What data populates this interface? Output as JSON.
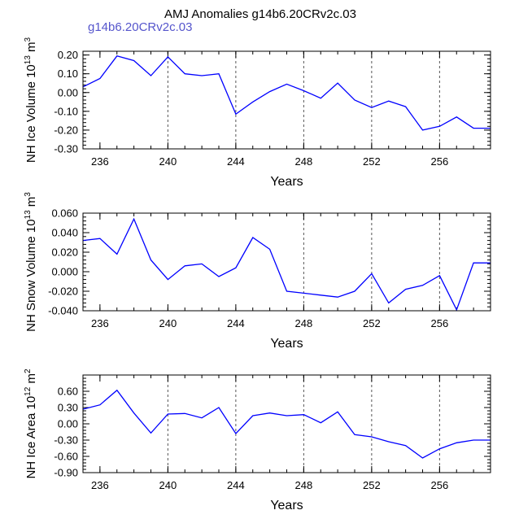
{
  "figure": {
    "title": "AMJ Anomalies g14b6.20CRv2c.03",
    "subtitle": "g14b6.20CRv2c.03",
    "colors": {
      "series": "#0000ff",
      "axis": "#000000",
      "subtitle": "#5555cc",
      "grid": "#555555"
    }
  },
  "chart_data": [
    {
      "type": "line",
      "title": "",
      "xlabel": "Years",
      "ylabel_main": "NH Ice Volume 10",
      "ylabel_exp": "13",
      "ylabel_unit": " m",
      "ylabel_unit_exp": "3",
      "xlim": [
        235,
        259
      ],
      "ylim": [
        -0.3,
        0.22
      ],
      "xticks": [
        236,
        240,
        244,
        248,
        252,
        256
      ],
      "xtick_labels": [
        "236",
        "240",
        "244",
        "248",
        "252",
        "256"
      ],
      "yticks": [
        0.2,
        0.1,
        0.0,
        -0.1,
        -0.2,
        -0.3
      ],
      "ytick_labels": [
        "0.20",
        "0.10",
        "0.00",
        "-0.10",
        "-0.20",
        "-0.30"
      ],
      "gridlines_x": [
        240,
        244,
        248,
        252,
        256
      ],
      "x": [
        235,
        236,
        237,
        238,
        239,
        240,
        241,
        242,
        243,
        244,
        245,
        246,
        247,
        248,
        249,
        250,
        251,
        252,
        253,
        254,
        255,
        256,
        257,
        258,
        259
      ],
      "series": [
        {
          "name": "NH Ice Volume",
          "values": [
            0.03,
            0.075,
            0.195,
            0.17,
            0.09,
            0.19,
            0.1,
            0.09,
            0.1,
            -0.115,
            -0.05,
            0.005,
            0.045,
            0.01,
            -0.03,
            0.05,
            -0.04,
            -0.08,
            -0.045,
            -0.075,
            -0.2,
            -0.18,
            -0.13,
            -0.19,
            -0.19
          ]
        }
      ]
    },
    {
      "type": "line",
      "title": "",
      "xlabel": "Years",
      "ylabel_main": "NH Snow Volume 10",
      "ylabel_exp": "13",
      "ylabel_unit": " m",
      "ylabel_unit_exp": "3",
      "xlim": [
        235,
        259
      ],
      "ylim": [
        -0.04,
        0.06
      ],
      "xticks": [
        236,
        240,
        244,
        248,
        252,
        256
      ],
      "xtick_labels": [
        "236",
        "240",
        "244",
        "248",
        "252",
        "256"
      ],
      "yticks": [
        0.06,
        0.04,
        0.02,
        0.0,
        -0.02,
        -0.04
      ],
      "ytick_labels": [
        "0.060",
        "0.040",
        "0.020",
        "0.000",
        "-0.020",
        "-0.040"
      ],
      "gridlines_x": [
        248,
        252,
        256
      ],
      "x": [
        235,
        236,
        237,
        238,
        239,
        240,
        241,
        242,
        243,
        244,
        245,
        246,
        247,
        248,
        249,
        250,
        251,
        252,
        253,
        254,
        255,
        256,
        257,
        258,
        259
      ],
      "series": [
        {
          "name": "NH Snow Volume",
          "values": [
            0.032,
            0.034,
            0.018,
            0.054,
            0.012,
            -0.008,
            0.006,
            0.008,
            -0.005,
            0.004,
            0.035,
            0.023,
            -0.02,
            -0.022,
            -0.024,
            -0.026,
            -0.02,
            -0.002,
            -0.032,
            -0.018,
            -0.014,
            -0.004,
            -0.039,
            0.009,
            0.009
          ]
        }
      ]
    },
    {
      "type": "line",
      "title": "",
      "xlabel": "Years",
      "ylabel_main": "NH Ice Area 10",
      "ylabel_exp": "12",
      "ylabel_unit": " m",
      "ylabel_unit_exp": "2",
      "xlim": [
        235,
        259
      ],
      "ylim": [
        -0.9,
        0.9
      ],
      "xticks": [
        236,
        240,
        244,
        248,
        252,
        256
      ],
      "xtick_labels": [
        "236",
        "240",
        "244",
        "248",
        "252",
        "256"
      ],
      "yticks": [
        0.6,
        0.3,
        0.0,
        -0.3,
        -0.6,
        -0.9
      ],
      "ytick_labels": [
        "0.60",
        "0.30",
        "0.00",
        "-0.30",
        "-0.60",
        "-0.90"
      ],
      "gridlines_x": [
        240,
        244,
        248,
        252,
        256
      ],
      "x": [
        235,
        236,
        237,
        238,
        239,
        240,
        241,
        242,
        243,
        244,
        245,
        246,
        247,
        248,
        249,
        250,
        251,
        252,
        253,
        254,
        255,
        256,
        257,
        258,
        259
      ],
      "series": [
        {
          "name": "NH Ice Area",
          "values": [
            0.27,
            0.35,
            0.62,
            0.2,
            -0.17,
            0.18,
            0.19,
            0.11,
            0.3,
            -0.18,
            0.15,
            0.2,
            0.15,
            0.17,
            0.02,
            0.22,
            -0.2,
            -0.24,
            -0.33,
            -0.4,
            -0.63,
            -0.46,
            -0.35,
            -0.3,
            -0.3
          ]
        }
      ]
    }
  ]
}
